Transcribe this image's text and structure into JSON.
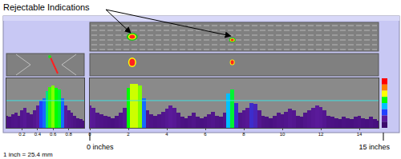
{
  "annotations": {
    "title": "Rejectable Indications",
    "scale_note": "1 inch = 25.4 mm",
    "start_label": "0 inches",
    "end_label": "15 inches"
  },
  "indications": [
    {
      "x": 2.2
    },
    {
      "x": 7.4
    }
  ],
  "chart_data": [
    {
      "type": "bar",
      "x": [
        0,
        0.2,
        0.4,
        0.6,
        0.8,
        1,
        1.2,
        1.4,
        1.6,
        1.8,
        2,
        2.2,
        2.4,
        2.6,
        2.8,
        3,
        3.2,
        3.4,
        3.6,
        3.8,
        4,
        4.2,
        4.4,
        4.6,
        4.8,
        5,
        5.2,
        5.4,
        5.6,
        5.8,
        6,
        6.2,
        6.4,
        6.6,
        6.8,
        7,
        7.2,
        7.4,
        7.6,
        7.8,
        8,
        8.2,
        8.4,
        8.6,
        8.8,
        9,
        9.2,
        9.4,
        9.6,
        9.8,
        10,
        10.2,
        10.4,
        10.6,
        10.8,
        11,
        11.2,
        11.4,
        11.6,
        11.8,
        12,
        12.2,
        12.4,
        12.6,
        12.8,
        13,
        13.2,
        13.4,
        13.6,
        13.8,
        14,
        14.2,
        14.4,
        14.6,
        14.8,
        15
      ],
      "values": [
        45,
        40,
        30,
        28,
        25,
        22,
        20,
        24,
        30,
        40,
        80,
        88,
        88,
        85,
        60,
        35,
        28,
        25,
        28,
        32,
        38,
        45,
        40,
        30,
        22,
        20,
        25,
        30,
        22,
        20,
        22,
        28,
        32,
        25,
        22,
        30,
        70,
        78,
        50,
        30,
        35,
        40,
        50,
        48,
        35,
        25,
        22,
        20,
        25,
        30,
        28,
        32,
        38,
        35,
        25,
        22,
        30,
        35,
        40,
        45,
        42,
        35,
        25,
        22,
        20,
        18,
        22,
        20,
        18,
        22,
        25,
        20,
        18,
        22,
        18,
        15
      ],
      "xlim": [
        0,
        15
      ],
      "xticks": [
        0,
        2,
        4,
        6,
        8,
        10,
        12,
        14
      ],
      "ylim": [
        0,
        100
      ],
      "threshold": 55,
      "tick_labels": "x"
    },
    {
      "type": "bar",
      "x": [
        0,
        0.04,
        0.08,
        0.12,
        0.16,
        0.2,
        0.24,
        0.28,
        0.32,
        0.36,
        0.4,
        0.44,
        0.48,
        0.52,
        0.56,
        0.6,
        0.64,
        0.68,
        0.72,
        0.76,
        0.8,
        0.84,
        0.88,
        0.92,
        0.96,
        1
      ],
      "values": [
        25,
        22,
        28,
        30,
        25,
        35,
        40,
        30,
        28,
        35,
        45,
        55,
        60,
        75,
        82,
        85,
        80,
        78,
        60,
        45,
        35,
        30,
        25,
        20,
        18,
        15
      ],
      "xlim": [
        0,
        1
      ],
      "xticks": [
        0.2,
        0.4,
        0.6,
        0.8
      ],
      "ylim": [
        0,
        100
      ],
      "threshold": 55,
      "tick_labels": "x"
    }
  ]
}
